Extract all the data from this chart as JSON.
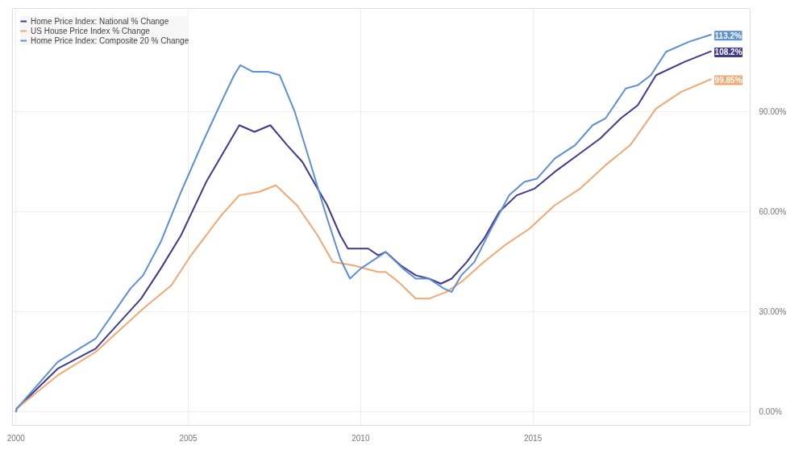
{
  "chart_data": {
    "type": "line",
    "xlim": [
      1999.9,
      2021.3
    ],
    "xticks": [
      {
        "value": 2000,
        "label": "2000"
      },
      {
        "value": 2005,
        "label": "2005"
      },
      {
        "value": 2010,
        "label": "2010"
      },
      {
        "value": 2015,
        "label": "2015"
      }
    ],
    "ylim": [
      -4,
      121
    ],
    "yticks": [
      {
        "value": 0,
        "label": "0.00%"
      },
      {
        "value": 30,
        "label": "30.00%"
      },
      {
        "value": 60,
        "label": "60.00%"
      },
      {
        "value": 90,
        "label": "90.00%"
      }
    ],
    "grid": true,
    "legend": "top left",
    "line_style": "solid",
    "marker": "none",
    "series": [
      {
        "name": "Home Price Index: National % Change",
        "color": "#3f3a8f",
        "x": [
          2000.0,
          2000.02,
          2001.21,
          2002.31,
          2003.63,
          2004.2,
          2004.79,
          2005.52,
          2006.48,
          2006.92,
          2007.38,
          2007.87,
          2008.31,
          2008.75,
          2009.03,
          2009.41,
          2009.63,
          2010.22,
          2010.51,
          2010.73,
          2011.16,
          2011.6,
          2011.98,
          2012.33,
          2012.64,
          2013.08,
          2013.58,
          2014.02,
          2014.53,
          2015.05,
          2015.63,
          2016.29,
          2016.95,
          2017.54,
          2018.04,
          2018.57,
          2019.4,
          2020.18
        ],
        "values": [
          0,
          1,
          13,
          19,
          34,
          43,
          53,
          69,
          86,
          84,
          86,
          80,
          75,
          67,
          62,
          53,
          49,
          49,
          47,
          48,
          44,
          41,
          40,
          38.5,
          40,
          45,
          52,
          60,
          65,
          67,
          72,
          77,
          82,
          88,
          92,
          101,
          105,
          108.2
        ],
        "value_labels": [
          null,
          null,
          null,
          null,
          null,
          null,
          null,
          null,
          null,
          null,
          null,
          null,
          null,
          null,
          null,
          null,
          null,
          null,
          null,
          null,
          null,
          null,
          null,
          null,
          null,
          null,
          null,
          null,
          null,
          null,
          null,
          null,
          null,
          null,
          null,
          null,
          null,
          "108.2%"
        ]
      },
      {
        "name": "US House Price Index % Change",
        "color": "#f4a770",
        "x": [
          2000.0,
          2000.02,
          2001.21,
          2002.31,
          2003.69,
          2004.51,
          2005.08,
          2005.96,
          2006.48,
          2007.05,
          2007.54,
          2008.15,
          2008.75,
          2009.19,
          2009.78,
          2010.51,
          2010.73,
          2011.1,
          2011.6,
          2011.98,
          2012.48,
          2012.92,
          2013.58,
          2014.18,
          2014.9,
          2015.63,
          2016.37,
          2017.1,
          2017.82,
          2018.57,
          2019.3,
          2020.18
        ],
        "values": [
          0,
          1,
          11,
          18,
          31,
          38,
          47,
          59,
          65,
          66,
          68,
          62,
          53,
          45,
          44,
          42,
          42,
          39,
          34,
          34,
          36,
          39,
          45,
          50,
          55,
          62,
          67,
          74,
          80,
          91,
          96,
          99.85
        ],
        "value_labels": [
          null,
          null,
          null,
          null,
          null,
          null,
          null,
          null,
          null,
          null,
          null,
          null,
          null,
          null,
          null,
          null,
          null,
          null,
          null,
          null,
          null,
          null,
          null,
          null,
          null,
          null,
          null,
          null,
          null,
          null,
          null,
          "99.85%"
        ]
      },
      {
        "name": "Home Price Index: Composite 20 % Change",
        "color": "#5b8fd6",
        "x": [
          2000.0,
          2000.02,
          2001.21,
          2002.31,
          2003.32,
          2003.69,
          2004.2,
          2004.79,
          2005.38,
          2005.96,
          2006.33,
          2006.51,
          2006.88,
          2007.32,
          2007.65,
          2008.09,
          2008.59,
          2009.03,
          2009.41,
          2009.69,
          2010.0,
          2010.44,
          2010.73,
          2011.23,
          2011.6,
          2011.98,
          2012.42,
          2012.64,
          2012.92,
          2013.3,
          2013.74,
          2014.31,
          2014.75,
          2015.12,
          2015.63,
          2016.22,
          2016.73,
          2017.1,
          2017.69,
          2018.04,
          2018.42,
          2018.86,
          2019.52,
          2020.18
        ],
        "values": [
          0,
          1,
          15,
          22,
          37,
          41,
          51,
          66,
          80,
          93,
          101,
          104,
          102,
          102,
          101,
          90,
          73,
          58,
          46,
          40,
          43,
          46,
          48,
          43,
          40,
          40,
          37,
          36,
          41,
          45,
          54,
          65,
          69,
          70,
          76,
          80,
          86,
          88,
          97,
          98,
          101,
          108,
          111,
          113.2
        ],
        "value_labels": [
          null,
          null,
          null,
          null,
          null,
          null,
          null,
          null,
          null,
          null,
          null,
          null,
          null,
          null,
          null,
          null,
          null,
          null,
          null,
          null,
          null,
          null,
          null,
          null,
          null,
          null,
          null,
          null,
          null,
          null,
          null,
          null,
          null,
          null,
          null,
          null,
          null,
          null,
          null,
          null,
          null,
          null,
          null,
          "113.2%"
        ]
      }
    ]
  }
}
